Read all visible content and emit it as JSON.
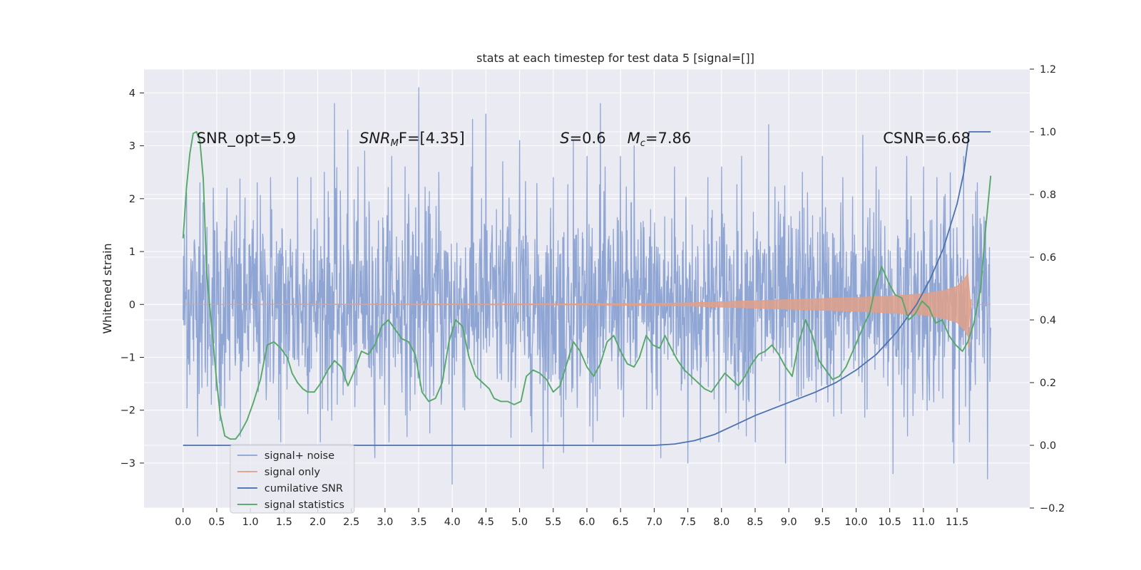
{
  "chart_data": {
    "type": "line",
    "title": "stats at each timestep for test data 5 [signal=[]]",
    "ylabel": "Whitened strain",
    "xlabel": "",
    "xlim": [
      -0.58,
      12.58
    ],
    "ylim": [
      -3.85,
      4.45
    ],
    "y2lim": [
      -0.2,
      1.2
    ],
    "x_ticks": [
      "0.0",
      "0.5",
      "1.0",
      "1.5",
      "2.0",
      "2.5",
      "3.0",
      "3.5",
      "4.0",
      "4.5",
      "5.0",
      "5.5",
      "6.0",
      "6.5",
      "7.0",
      "7.5",
      "8.0",
      "8.5",
      "9.0",
      "9.5",
      "10.0",
      "10.5",
      "11.0",
      "11.5"
    ],
    "y_ticks": [
      "4",
      "3",
      "2",
      "1",
      "0",
      "−1",
      "−2",
      "−3"
    ],
    "y2_ticks": [
      "1.2",
      "1.0",
      "0.8",
      "0.6",
      "0.4",
      "0.2",
      "0.0",
      "−0.2"
    ],
    "grid": true,
    "legend_position": "lower-left",
    "colors": {
      "noise": "#8fa5d4",
      "signal": "#e0a08a",
      "csnr": "#4c72b0",
      "stats": "#55a868",
      "background": "#eaeaf2",
      "grid": "#ffffff"
    },
    "annotations": {
      "snr_opt": "SNR_opt=5.9",
      "snr_mf_pre": "SNR",
      "snr_mf_sub": "M",
      "snr_mf_post": "F=[4.35]",
      "s_var": "S",
      "s_val": "=0.6",
      "mc_var": "M",
      "mc_sub": "c",
      "mc_val": "=7.86",
      "csnr": "CSNR=6.68"
    },
    "series": [
      {
        "name": "signal+ noise",
        "axis": "left",
        "description_stats": {
          "x_range": [
            0.0,
            12.0
          ],
          "approx_range": [
            -3.4,
            4.1
          ]
        },
        "peaks": [
          {
            "x": 0.05,
            "y": 2.1
          },
          {
            "x": 0.25,
            "y": 2.3
          },
          {
            "x": 0.45,
            "y": 2.2
          },
          {
            "x": 0.55,
            "y": -2.2
          },
          {
            "x": 0.65,
            "y": 2.2
          },
          {
            "x": 0.85,
            "y": -2.5
          },
          {
            "x": 1.1,
            "y": 2.3
          },
          {
            "x": 1.3,
            "y": 2.4
          },
          {
            "x": 1.45,
            "y": -2.6
          },
          {
            "x": 1.7,
            "y": 2.4
          },
          {
            "x": 1.9,
            "y": 2.4
          },
          {
            "x": 2.1,
            "y": 2.5
          },
          {
            "x": 2.25,
            "y": 3.8
          },
          {
            "x": 2.45,
            "y": 3.3
          },
          {
            "x": 2.7,
            "y": 2.9
          },
          {
            "x": 2.85,
            "y": -2.9
          },
          {
            "x": 3.1,
            "y": 2.8
          },
          {
            "x": 3.3,
            "y": 2.6
          },
          {
            "x": 3.5,
            "y": 4.1
          },
          {
            "x": 3.8,
            "y": 2.5
          },
          {
            "x": 4.0,
            "y": -3.4
          },
          {
            "x": 4.3,
            "y": 3.5
          },
          {
            "x": 4.5,
            "y": 3.6
          },
          {
            "x": 4.75,
            "y": 2.7
          },
          {
            "x": 5.0,
            "y": 3.1
          },
          {
            "x": 5.35,
            "y": -3.1
          },
          {
            "x": 5.5,
            "y": 2.4
          },
          {
            "x": 5.65,
            "y": -2.8
          },
          {
            "x": 5.8,
            "y": 3.1
          },
          {
            "x": 6.0,
            "y": 2.8
          },
          {
            "x": 6.2,
            "y": 3.8
          },
          {
            "x": 6.5,
            "y": 2.8
          },
          {
            "x": 6.7,
            "y": 3.0
          },
          {
            "x": 7.1,
            "y": -2.9
          },
          {
            "x": 7.3,
            "y": 2.6
          },
          {
            "x": 7.5,
            "y": -3.0
          },
          {
            "x": 7.8,
            "y": 2.4
          },
          {
            "x": 8.0,
            "y": 2.6
          },
          {
            "x": 8.3,
            "y": 2.8
          },
          {
            "x": 8.5,
            "y": -2.6
          },
          {
            "x": 8.7,
            "y": 3.4
          },
          {
            "x": 8.95,
            "y": -3.0
          },
          {
            "x": 9.2,
            "y": 2.5
          },
          {
            "x": 9.5,
            "y": 2.8
          },
          {
            "x": 9.8,
            "y": 2.4
          },
          {
            "x": 10.1,
            "y": 3.2
          },
          {
            "x": 10.3,
            "y": 2.6
          },
          {
            "x": 10.55,
            "y": -3.2
          },
          {
            "x": 10.75,
            "y": 2.8
          },
          {
            "x": 11.0,
            "y": 2.6
          },
          {
            "x": 11.2,
            "y": 2.4
          },
          {
            "x": 11.45,
            "y": -3.0
          },
          {
            "x": 11.6,
            "y": 2.8
          },
          {
            "x": 11.8,
            "y": 2.3
          },
          {
            "x": 11.95,
            "y": -3.3
          }
        ]
      },
      {
        "name": "signal only",
        "axis": "left",
        "envelope": [
          {
            "x": 0.0,
            "amp": 0.0
          },
          {
            "x": 6.0,
            "amp": 0.01
          },
          {
            "x": 7.0,
            "amp": 0.02
          },
          {
            "x": 7.5,
            "amp": 0.03
          },
          {
            "x": 8.0,
            "amp": 0.05
          },
          {
            "x": 8.5,
            "amp": 0.07
          },
          {
            "x": 9.0,
            "amp": 0.09
          },
          {
            "x": 9.5,
            "amp": 0.11
          },
          {
            "x": 10.0,
            "amp": 0.13
          },
          {
            "x": 10.5,
            "amp": 0.16
          },
          {
            "x": 11.0,
            "amp": 0.2
          },
          {
            "x": 11.3,
            "amp": 0.26
          },
          {
            "x": 11.5,
            "amp": 0.34
          },
          {
            "x": 11.62,
            "amp": 0.5
          },
          {
            "x": 11.66,
            "amp": 0.6
          },
          {
            "x": 11.7,
            "amp": 0.0
          },
          {
            "x": 12.0,
            "amp": 0.0
          }
        ]
      },
      {
        "name": "cumilative SNR",
        "axis": "right",
        "points": [
          [
            0.0,
            0.0
          ],
          [
            7.0,
            0.0
          ],
          [
            7.3,
            0.004
          ],
          [
            7.6,
            0.015
          ],
          [
            7.9,
            0.035
          ],
          [
            8.2,
            0.065
          ],
          [
            8.5,
            0.095
          ],
          [
            8.8,
            0.12
          ],
          [
            9.1,
            0.145
          ],
          [
            9.4,
            0.17
          ],
          [
            9.7,
            0.2
          ],
          [
            10.0,
            0.24
          ],
          [
            10.3,
            0.29
          ],
          [
            10.6,
            0.36
          ],
          [
            10.9,
            0.45
          ],
          [
            11.1,
            0.53
          ],
          [
            11.3,
            0.63
          ],
          [
            11.5,
            0.77
          ],
          [
            11.6,
            0.87
          ],
          [
            11.65,
            0.95
          ],
          [
            11.68,
            1.0
          ],
          [
            12.0,
            1.0
          ]
        ]
      },
      {
        "name": "signal statistics",
        "axis": "right",
        "points": [
          [
            0.0,
            0.66
          ],
          [
            0.05,
            0.82
          ],
          [
            0.1,
            0.93
          ],
          [
            0.15,
            0.995
          ],
          [
            0.2,
            1.0
          ],
          [
            0.25,
            0.97
          ],
          [
            0.3,
            0.85
          ],
          [
            0.35,
            0.55
          ],
          [
            0.45,
            0.32
          ],
          [
            0.5,
            0.2
          ],
          [
            0.55,
            0.1
          ],
          [
            0.62,
            0.03
          ],
          [
            0.7,
            0.02
          ],
          [
            0.78,
            0.02
          ],
          [
            0.85,
            0.04
          ],
          [
            0.95,
            0.08
          ],
          [
            1.05,
            0.14
          ],
          [
            1.15,
            0.21
          ],
          [
            1.25,
            0.32
          ],
          [
            1.35,
            0.33
          ],
          [
            1.45,
            0.31
          ],
          [
            1.55,
            0.28
          ],
          [
            1.62,
            0.23
          ],
          [
            1.7,
            0.2
          ],
          [
            1.78,
            0.18
          ],
          [
            1.85,
            0.17
          ],
          [
            1.95,
            0.17
          ],
          [
            2.05,
            0.2
          ],
          [
            2.15,
            0.24
          ],
          [
            2.25,
            0.27
          ],
          [
            2.35,
            0.25
          ],
          [
            2.45,
            0.19
          ],
          [
            2.55,
            0.24
          ],
          [
            2.65,
            0.3
          ],
          [
            2.75,
            0.29
          ],
          [
            2.85,
            0.32
          ],
          [
            2.95,
            0.38
          ],
          [
            3.05,
            0.4
          ],
          [
            3.15,
            0.37
          ],
          [
            3.25,
            0.34
          ],
          [
            3.35,
            0.33
          ],
          [
            3.45,
            0.29
          ],
          [
            3.55,
            0.17
          ],
          [
            3.65,
            0.14
          ],
          [
            3.75,
            0.15
          ],
          [
            3.85,
            0.2
          ],
          [
            3.95,
            0.33
          ],
          [
            4.05,
            0.4
          ],
          [
            4.15,
            0.38
          ],
          [
            4.25,
            0.28
          ],
          [
            4.35,
            0.22
          ],
          [
            4.45,
            0.2
          ],
          [
            4.55,
            0.18
          ],
          [
            4.62,
            0.15
          ],
          [
            4.72,
            0.14
          ],
          [
            4.82,
            0.14
          ],
          [
            4.92,
            0.13
          ],
          [
            5.02,
            0.14
          ],
          [
            5.1,
            0.22
          ],
          [
            5.2,
            0.24
          ],
          [
            5.3,
            0.23
          ],
          [
            5.4,
            0.21
          ],
          [
            5.5,
            0.17
          ],
          [
            5.6,
            0.19
          ],
          [
            5.7,
            0.26
          ],
          [
            5.8,
            0.33
          ],
          [
            5.9,
            0.3
          ],
          [
            6.0,
            0.25
          ],
          [
            6.1,
            0.22
          ],
          [
            6.2,
            0.26
          ],
          [
            6.3,
            0.33
          ],
          [
            6.4,
            0.35
          ],
          [
            6.5,
            0.3
          ],
          [
            6.6,
            0.26
          ],
          [
            6.7,
            0.25
          ],
          [
            6.78,
            0.28
          ],
          [
            6.88,
            0.35
          ],
          [
            6.98,
            0.32
          ],
          [
            7.08,
            0.31
          ],
          [
            7.16,
            0.35
          ],
          [
            7.25,
            0.31
          ],
          [
            7.35,
            0.27
          ],
          [
            7.45,
            0.24
          ],
          [
            7.55,
            0.22
          ],
          [
            7.65,
            0.2
          ],
          [
            7.75,
            0.18
          ],
          [
            7.85,
            0.17
          ],
          [
            7.95,
            0.2
          ],
          [
            8.05,
            0.23
          ],
          [
            8.15,
            0.21
          ],
          [
            8.25,
            0.19
          ],
          [
            8.35,
            0.22
          ],
          [
            8.45,
            0.26
          ],
          [
            8.55,
            0.29
          ],
          [
            8.65,
            0.3
          ],
          [
            8.75,
            0.32
          ],
          [
            8.85,
            0.29
          ],
          [
            8.95,
            0.25
          ],
          [
            9.05,
            0.22
          ],
          [
            9.15,
            0.33
          ],
          [
            9.25,
            0.4
          ],
          [
            9.35,
            0.35
          ],
          [
            9.45,
            0.27
          ],
          [
            9.55,
            0.24
          ],
          [
            9.65,
            0.21
          ],
          [
            9.75,
            0.22
          ],
          [
            9.85,
            0.25
          ],
          [
            9.95,
            0.3
          ],
          [
            10.05,
            0.35
          ],
          [
            10.15,
            0.4
          ],
          [
            10.2,
            0.42
          ],
          [
            10.28,
            0.5
          ],
          [
            10.38,
            0.57
          ],
          [
            10.48,
            0.52
          ],
          [
            10.58,
            0.48
          ],
          [
            10.68,
            0.47
          ],
          [
            10.78,
            0.4
          ],
          [
            10.88,
            0.42
          ],
          [
            10.98,
            0.46
          ],
          [
            11.08,
            0.44
          ],
          [
            11.18,
            0.39
          ],
          [
            11.28,
            0.4
          ],
          [
            11.38,
            0.35
          ],
          [
            11.48,
            0.32
          ],
          [
            11.58,
            0.3
          ],
          [
            11.66,
            0.33
          ],
          [
            11.75,
            0.39
          ],
          [
            11.85,
            0.5
          ],
          [
            11.92,
            0.68
          ],
          [
            12.0,
            0.86
          ]
        ]
      }
    ],
    "legend": [
      "signal+ noise",
      "signal only",
      "cumilative SNR",
      "signal statistics"
    ]
  }
}
